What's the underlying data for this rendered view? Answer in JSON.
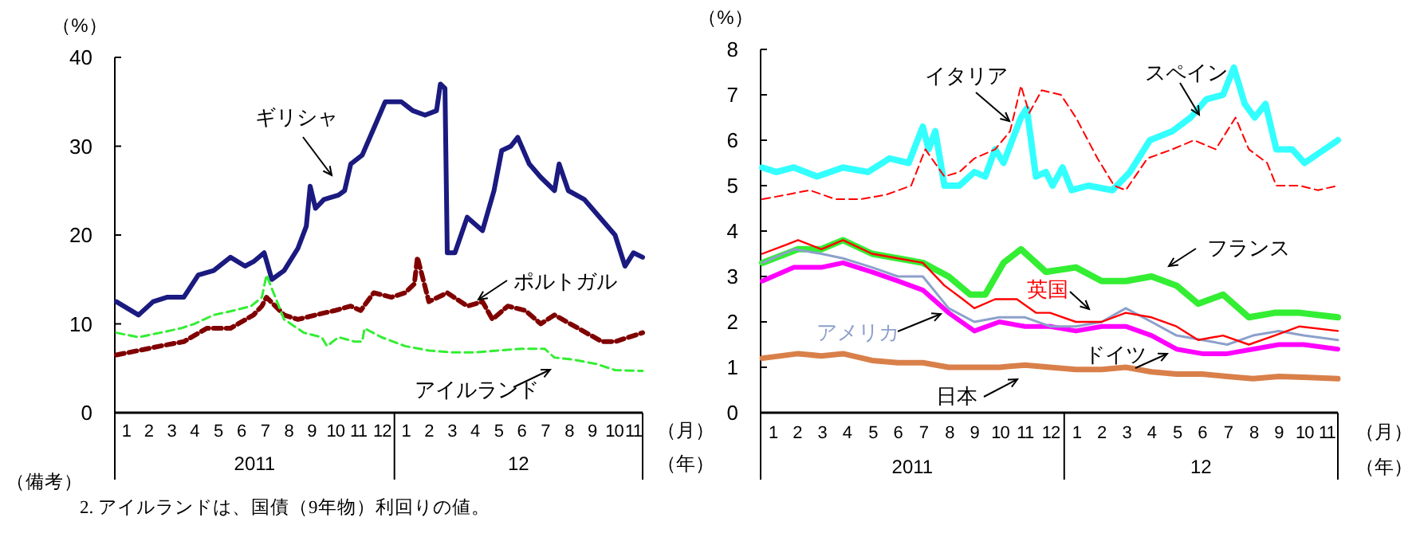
{
  "chart_data": [
    {
      "type": "line",
      "ylabel": "（%）",
      "xlabel": "（月）",
      "ylim": [
        0,
        40
      ],
      "yticks": [
        0,
        10,
        20,
        30,
        40
      ],
      "xlim": [
        "2011-01-01",
        "2012-11-20"
      ],
      "xticks": [
        {
          "value": "2011-01-16",
          "label": "1"
        },
        {
          "value": "2011-02-14",
          "label": "2"
        },
        {
          "value": "2011-03-16",
          "label": "3"
        },
        {
          "value": "2011-04-15",
          "label": "4"
        },
        {
          "value": "2011-05-16",
          "label": "5"
        },
        {
          "value": "2011-06-15",
          "label": "6"
        },
        {
          "value": "2011-07-16",
          "label": "7"
        },
        {
          "value": "2011-08-16",
          "label": "8"
        },
        {
          "value": "2011-09-15",
          "label": "9"
        },
        {
          "value": "2011-10-16",
          "label": "10"
        },
        {
          "value": "2011-11-15",
          "label": "11"
        },
        {
          "value": "2011-12-16",
          "label": "12"
        },
        {
          "value": "2012-01-16",
          "label": "1"
        },
        {
          "value": "2012-02-15",
          "label": "2"
        },
        {
          "value": "2012-03-16",
          "label": "3"
        },
        {
          "value": "2012-04-15",
          "label": "4"
        },
        {
          "value": "2012-05-16",
          "label": "5"
        },
        {
          "value": "2012-06-15",
          "label": "6"
        },
        {
          "value": "2012-07-16",
          "label": "7"
        },
        {
          "value": "2012-08-16",
          "label": "8"
        },
        {
          "value": "2012-09-15",
          "label": "9"
        },
        {
          "value": "2012-10-14",
          "label": "10"
        },
        {
          "value": "2012-11-08",
          "label": "11"
        }
      ],
      "legend": false,
      "series": [
        {
          "name": "ギリシャ",
          "color": "#1a1a80",
          "line_style": "solid",
          "x": [
            "2011-01-03",
            "2011-02-01",
            "2011-02-20",
            "2011-03-10",
            "2011-04-01",
            "2011-04-20",
            "2011-05-10",
            "2011-06-01",
            "2011-06-20",
            "2011-07-01",
            "2011-07-15",
            "2011-07-25",
            "2011-08-10",
            "2011-08-28",
            "2011-09-08",
            "2011-09-13",
            "2011-09-20",
            "2011-10-01",
            "2011-10-20",
            "2011-10-28",
            "2011-11-05",
            "2011-11-20",
            "2011-12-05",
            "2011-12-20",
            "2012-01-10",
            "2012-01-25",
            "2012-02-10",
            "2012-02-25",
            "2012-03-01",
            "2012-03-07",
            "2012-03-10",
            "2012-03-20",
            "2012-04-05",
            "2012-04-25",
            "2012-05-10",
            "2012-05-20",
            "2012-06-01",
            "2012-06-10",
            "2012-06-25",
            "2012-07-10",
            "2012-07-28",
            "2012-08-03",
            "2012-08-15",
            "2012-09-05",
            "2012-09-25",
            "2012-10-15",
            "2012-10-28",
            "2012-11-08",
            "2012-11-20"
          ],
          "values": [
            12.5,
            11,
            12.5,
            13,
            13,
            15.5,
            16,
            17.5,
            16.5,
            17,
            18,
            15,
            16,
            18.5,
            21,
            25.5,
            23,
            24,
            24.5,
            25,
            28,
            29,
            32,
            35,
            35,
            34,
            33.5,
            34,
            37,
            36.5,
            18,
            18,
            22,
            20.5,
            25,
            29.5,
            30,
            31,
            28,
            26.5,
            25,
            28,
            25,
            24,
            22,
            20,
            16.5,
            18,
            17.5
          ]
        },
        {
          "name": "ポルトガル",
          "color": "#800000",
          "line_style": "dashed",
          "x": [
            "2011-01-03",
            "2011-02-01",
            "2011-03-01",
            "2011-04-01",
            "2011-05-01",
            "2011-06-01",
            "2011-07-01",
            "2011-07-12",
            "2011-07-18",
            "2011-08-10",
            "2011-08-28",
            "2011-09-20",
            "2011-10-15",
            "2011-11-05",
            "2011-11-18",
            "2011-12-05",
            "2011-12-28",
            "2012-01-15",
            "2012-01-27",
            "2012-01-31",
            "2012-02-15",
            "2012-03-10",
            "2012-04-05",
            "2012-04-25",
            "2012-05-08",
            "2012-05-28",
            "2012-06-20",
            "2012-07-10",
            "2012-07-28",
            "2012-08-28",
            "2012-09-28",
            "2012-10-15",
            "2012-11-20"
          ],
          "values": [
            6.5,
            7,
            7.5,
            8,
            9.5,
            9.5,
            11,
            12,
            13,
            11,
            10.5,
            11,
            11.5,
            12,
            11.5,
            13.5,
            13,
            13.5,
            14.5,
            17.5,
            12.5,
            13.5,
            12,
            12.5,
            10.5,
            12,
            11.5,
            10,
            11,
            9.5,
            8,
            8,
            9
          ]
        },
        {
          "name": "アイルランド",
          "color": "#33ee33",
          "line_style": "dashed",
          "x": [
            "2011-01-03",
            "2011-02-01",
            "2011-03-01",
            "2011-03-28",
            "2011-04-15",
            "2011-05-10",
            "2011-06-05",
            "2011-06-28",
            "2011-07-12",
            "2011-07-18",
            "2011-08-10",
            "2011-09-05",
            "2011-09-28",
            "2011-10-05",
            "2011-10-20",
            "2011-11-10",
            "2011-11-20",
            "2011-11-23",
            "2011-12-15",
            "2012-01-15",
            "2012-02-15",
            "2012-03-15",
            "2012-04-15",
            "2012-05-15",
            "2012-06-15",
            "2012-07-15",
            "2012-07-28",
            "2012-08-20",
            "2012-09-20",
            "2012-10-15",
            "2012-11-20"
          ],
          "values": [
            9,
            8.5,
            9,
            9.5,
            10,
            11,
            11.5,
            12,
            13,
            15.5,
            10.5,
            9,
            8.5,
            7.5,
            8.5,
            8,
            8,
            9.5,
            8.5,
            7.5,
            7,
            6.8,
            6.8,
            7,
            7.2,
            7.2,
            6.2,
            6,
            5.5,
            4.8,
            4.7
          ]
        }
      ],
      "annotations": [
        "2011",
        "12",
        "（年）",
        "（備考）",
        "2. アイルランドは、国債（9年物）利回りの値。"
      ]
    },
    {
      "type": "line",
      "ylabel": "（%）",
      "xlabel": "（月）",
      "ylim": [
        0,
        8
      ],
      "yticks": [
        0,
        1,
        2,
        3,
        4,
        5,
        6,
        7,
        8
      ],
      "xlim": [
        "2011-01-01",
        "2012-11-25"
      ],
      "xticks": [
        {
          "value": "2011-01-16",
          "label": "1"
        },
        {
          "value": "2011-02-14",
          "label": "2"
        },
        {
          "value": "2011-03-16",
          "label": "3"
        },
        {
          "value": "2011-04-15",
          "label": "4"
        },
        {
          "value": "2011-05-16",
          "label": "5"
        },
        {
          "value": "2011-06-15",
          "label": "6"
        },
        {
          "value": "2011-07-16",
          "label": "7"
        },
        {
          "value": "2011-08-16",
          "label": "8"
        },
        {
          "value": "2011-09-15",
          "label": "9"
        },
        {
          "value": "2011-10-16",
          "label": "10"
        },
        {
          "value": "2011-11-15",
          "label": "11"
        },
        {
          "value": "2011-12-16",
          "label": "12"
        },
        {
          "value": "2012-01-16",
          "label": "1"
        },
        {
          "value": "2012-02-15",
          "label": "2"
        },
        {
          "value": "2012-03-16",
          "label": "3"
        },
        {
          "value": "2012-04-15",
          "label": "4"
        },
        {
          "value": "2012-05-16",
          "label": "5"
        },
        {
          "value": "2012-06-15",
          "label": "6"
        },
        {
          "value": "2012-07-16",
          "label": "7"
        },
        {
          "value": "2012-08-16",
          "label": "8"
        },
        {
          "value": "2012-09-15",
          "label": "9"
        },
        {
          "value": "2012-10-16",
          "label": "10"
        },
        {
          "value": "2012-11-12",
          "label": "11"
        }
      ],
      "legend": false,
      "series": [
        {
          "name": "イタリア",
          "color": "#ff0000",
          "line_style": "dashed",
          "x": [
            "2011-01-03",
            "2011-02-01",
            "2011-03-01",
            "2011-04-01",
            "2011-05-01",
            "2011-06-01",
            "2011-07-01",
            "2011-07-18",
            "2011-08-10",
            "2011-08-28",
            "2011-09-15",
            "2011-10-10",
            "2011-10-28",
            "2011-11-10",
            "2011-11-20",
            "2011-12-05",
            "2011-12-28",
            "2012-01-15",
            "2012-02-10",
            "2012-03-01",
            "2012-03-15",
            "2012-04-10",
            "2012-05-10",
            "2012-06-05",
            "2012-07-01",
            "2012-07-25",
            "2012-08-10",
            "2012-09-01",
            "2012-09-12",
            "2012-10-10",
            "2012-11-01",
            "2012-11-25"
          ],
          "values": [
            4.7,
            4.8,
            4.9,
            4.7,
            4.7,
            4.8,
            5,
            5.8,
            5.2,
            5.3,
            5.6,
            5.8,
            6.2,
            7.2,
            6.6,
            7.1,
            7,
            6.5,
            5.6,
            5,
            4.9,
            5.6,
            5.8,
            6,
            5.8,
            6.5,
            5.8,
            5.5,
            5,
            5,
            4.9,
            5
          ]
        },
        {
          "name": "スペイン",
          "color": "#33ffff",
          "line_style": "solid",
          "x": [
            "2011-01-03",
            "2011-01-20",
            "2011-02-10",
            "2011-03-10",
            "2011-04-10",
            "2011-05-10",
            "2011-06-05",
            "2011-06-28",
            "2011-07-15",
            "2011-07-22",
            "2011-07-30",
            "2011-08-10",
            "2011-08-28",
            "2011-09-15",
            "2011-09-28",
            "2011-10-10",
            "2011-10-20",
            "2011-11-10",
            "2011-11-17",
            "2011-11-28",
            "2011-12-10",
            "2011-12-18",
            "2011-12-30",
            "2012-01-10",
            "2012-01-30",
            "2012-02-28",
            "2012-03-20",
            "2012-04-13",
            "2012-05-10",
            "2012-06-01",
            "2012-06-20",
            "2012-07-10",
            "2012-07-23",
            "2012-08-05",
            "2012-08-17",
            "2012-08-30",
            "2012-09-12",
            "2012-10-01",
            "2012-10-16",
            "2012-11-25"
          ],
          "values": [
            5.4,
            5.3,
            5.4,
            5.2,
            5.4,
            5.3,
            5.6,
            5.5,
            6.3,
            5.8,
            6.2,
            5,
            5,
            5.3,
            5.2,
            5.8,
            5.5,
            6.5,
            6.7,
            5.2,
            5.3,
            5,
            5.4,
            4.9,
            5,
            4.9,
            5.3,
            6,
            6.2,
            6.5,
            6.9,
            7,
            7.6,
            6.8,
            6.5,
            6.8,
            5.8,
            5.8,
            5.5,
            6
          ]
        },
        {
          "name": "英国",
          "color": "#ff0000",
          "line_style": "solid",
          "x": [
            "2011-01-03",
            "2011-02-01",
            "2011-02-15",
            "2011-03-15",
            "2011-04-10",
            "2011-05-15",
            "2011-06-15",
            "2011-07-15",
            "2011-08-10",
            "2011-09-01",
            "2011-09-15",
            "2011-10-10",
            "2011-11-05",
            "2011-11-28",
            "2011-12-15",
            "2012-01-15",
            "2012-02-15",
            "2012-03-15",
            "2012-04-15",
            "2012-05-15",
            "2012-06-10",
            "2012-07-10",
            "2012-08-10",
            "2012-09-10",
            "2012-10-10",
            "2012-11-25"
          ],
          "values": [
            3.5,
            3.7,
            3.8,
            3.6,
            3.8,
            3.5,
            3.4,
            3.3,
            2.8,
            2.5,
            2.3,
            2.5,
            2.5,
            2.2,
            2.2,
            2,
            2,
            2.2,
            2.1,
            1.9,
            1.6,
            1.7,
            1.5,
            1.7,
            1.9,
            1.8
          ]
        },
        {
          "name": "フランス",
          "color": "#33ee33",
          "line_style": "solid",
          "x": [
            "2011-01-03",
            "2011-02-15",
            "2011-03-15",
            "2011-04-10",
            "2011-05-15",
            "2011-06-15",
            "2011-07-15",
            "2011-08-15",
            "2011-09-10",
            "2011-09-28",
            "2011-10-20",
            "2011-11-10",
            "2011-12-10",
            "2012-01-15",
            "2012-02-15",
            "2012-03-15",
            "2012-04-15",
            "2012-05-15",
            "2012-06-10",
            "2012-07-10",
            "2012-08-10",
            "2012-09-10",
            "2012-10-10",
            "2012-11-25"
          ],
          "values": [
            3.3,
            3.6,
            3.6,
            3.8,
            3.5,
            3.4,
            3.3,
            3,
            2.6,
            2.6,
            3.3,
            3.6,
            3.1,
            3.2,
            2.9,
            2.9,
            3,
            2.8,
            2.4,
            2.6,
            2.1,
            2.2,
            2.2,
            2.1
          ]
        },
        {
          "name": "アメリカ",
          "color": "#8da0cb",
          "line_style": "solid",
          "x": [
            "2011-01-03",
            "2011-02-10",
            "2011-03-15",
            "2011-04-10",
            "2011-05-15",
            "2011-06-15",
            "2011-07-15",
            "2011-08-15",
            "2011-09-15",
            "2011-10-15",
            "2011-11-15",
            "2011-12-15",
            "2012-01-15",
            "2012-02-15",
            "2012-03-15",
            "2012-04-15",
            "2012-05-15",
            "2012-06-15",
            "2012-07-15",
            "2012-08-15",
            "2012-09-15",
            "2012-10-15",
            "2012-11-25"
          ],
          "values": [
            3.3,
            3.6,
            3.5,
            3.4,
            3.2,
            3,
            3,
            2.3,
            2,
            2.1,
            2.1,
            1.9,
            1.9,
            2,
            2.3,
            2,
            1.7,
            1.6,
            1.5,
            1.7,
            1.8,
            1.7,
            1.6
          ]
        },
        {
          "name": "ドイツ",
          "color": "#ff00ff",
          "line_style": "solid",
          "x": [
            "2011-01-03",
            "2011-02-10",
            "2011-03-15",
            "2011-04-10",
            "2011-05-15",
            "2011-06-15",
            "2011-07-15",
            "2011-08-15",
            "2011-09-15",
            "2011-10-15",
            "2011-11-15",
            "2011-12-15",
            "2012-01-15",
            "2012-02-15",
            "2012-03-15",
            "2012-04-15",
            "2012-05-15",
            "2012-06-15",
            "2012-07-15",
            "2012-08-15",
            "2012-09-15",
            "2012-10-15",
            "2012-11-25"
          ],
          "values": [
            2.9,
            3.2,
            3.2,
            3.3,
            3.1,
            2.9,
            2.7,
            2.2,
            1.8,
            2,
            1.9,
            1.9,
            1.8,
            1.9,
            1.9,
            1.7,
            1.4,
            1.3,
            1.3,
            1.4,
            1.5,
            1.5,
            1.4
          ]
        },
        {
          "name": "日本",
          "color": "#d9804a",
          "line_style": "solid",
          "x": [
            "2011-01-03",
            "2011-02-15",
            "2011-03-15",
            "2011-04-10",
            "2011-05-15",
            "2011-06-15",
            "2011-07-15",
            "2011-08-15",
            "2011-09-15",
            "2011-10-15",
            "2011-11-15",
            "2011-12-15",
            "2012-01-15",
            "2012-02-15",
            "2012-03-15",
            "2012-04-15",
            "2012-05-15",
            "2012-06-15",
            "2012-07-15",
            "2012-08-15",
            "2012-09-15",
            "2012-10-15",
            "2012-11-25"
          ],
          "values": [
            1.2,
            1.3,
            1.25,
            1.3,
            1.15,
            1.1,
            1.1,
            1,
            1,
            1,
            1.05,
            1,
            0.95,
            0.95,
            1,
            0.9,
            0.85,
            0.85,
            0.8,
            0.75,
            0.8,
            0.78,
            0.75
          ]
        }
      ],
      "annotations": [
        "2011",
        "12",
        "（年）"
      ]
    }
  ]
}
